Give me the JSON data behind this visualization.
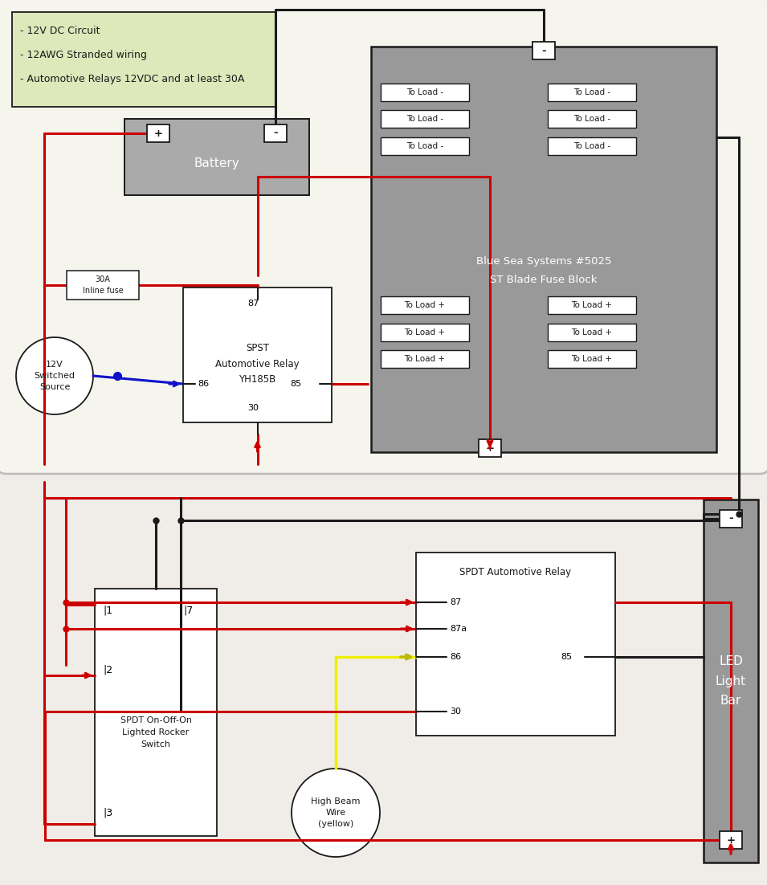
{
  "fig_w": 9.55,
  "fig_h": 11.02,
  "bg_outer": "#f0ede8",
  "top_panel_bg": "#f5f5ee",
  "gray_med": "#aaaaaa",
  "gray_dark": "#999999",
  "white": "#ffffff",
  "green_note": "#dde8bb",
  "red": "#cc0000",
  "black": "#1a1a1a",
  "blue": "#1111cc",
  "yellow": "#eeee00",
  "note_lines": [
    "- 12V DC Circuit",
    "- 12AWG Stranded wiring",
    "- Automotive Relays 12VDC and at least 30A"
  ],
  "battery_text": "Battery",
  "fuse_text": "30A\nInline fuse",
  "relay1_text": "SPST\nAutomotive Relay\nYH185B",
  "fuse_block_line1": "Blue Sea Systems #5025",
  "fuse_block_line2": "ST Blade Fuse Block",
  "source_text": "12V\nSwitched\nSource",
  "relay2_text": "SPDT Automotive Relay",
  "switch_text": "SPDT On-Off-On\nLighted Rocker\nSwitch",
  "led_text": "LED\nLight\nBar",
  "highbeam_text": "High Beam\nWire\n(yellow)"
}
